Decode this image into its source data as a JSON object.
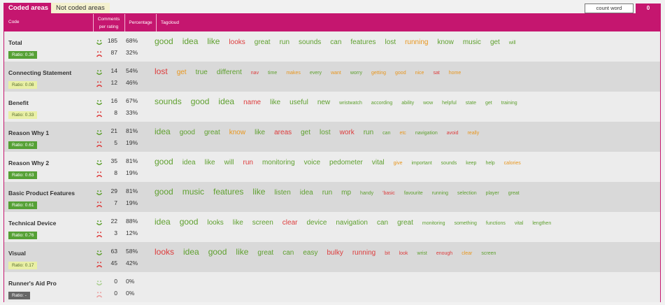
{
  "tabs": [
    {
      "label": "Coded areas",
      "active": true
    },
    {
      "label": "Not coded areas",
      "active": false
    }
  ],
  "count_control": {
    "label": "count word",
    "value": "0"
  },
  "header": {
    "code": "Code",
    "comments_line1": "Comments",
    "comments_line2": "per rating",
    "percentage": "Percentage",
    "tagcloud": "Tagcloud"
  },
  "colors": {
    "accent": "#c5166f",
    "positive_word": "#5fa02f",
    "neutral_word": "#e8961d",
    "negative_word": "#dd3c3c"
  },
  "rows": [
    {
      "code": "Total",
      "ratio": "Ratio: 0.36",
      "ratio_style": "green",
      "pos": "185",
      "pos_pct": "68%",
      "neg": "87",
      "neg_pct": "32%",
      "words": [
        [
          "good",
          "g",
          1
        ],
        [
          "idea",
          "g",
          1
        ],
        [
          "like",
          "g",
          1
        ],
        [
          "looks",
          "r",
          2
        ],
        [
          "great",
          "g",
          2
        ],
        [
          "run",
          "g",
          2
        ],
        [
          "sounds",
          "g",
          2
        ],
        [
          "can",
          "g",
          2
        ],
        [
          "features",
          "g",
          2
        ],
        [
          "lost",
          "g",
          2
        ],
        [
          "running",
          "o",
          2
        ],
        [
          "know",
          "g",
          2
        ],
        [
          "music",
          "g",
          2
        ],
        [
          "get",
          "g",
          2
        ],
        [
          "will",
          "g",
          4
        ]
      ]
    },
    {
      "code": "Connecting Statement",
      "ratio": "Ratio: 0.08",
      "ratio_style": "yellow",
      "pos": "14",
      "pos_pct": "54%",
      "neg": "12",
      "neg_pct": "46%",
      "words": [
        [
          "lost",
          "r",
          1
        ],
        [
          "get",
          "o",
          2
        ],
        [
          "true",
          "g",
          2
        ],
        [
          "different",
          "g",
          2
        ],
        [
          "nav",
          "r",
          4
        ],
        [
          "time",
          "g",
          4
        ],
        [
          "makes",
          "o",
          4
        ],
        [
          "every",
          "g",
          4
        ],
        [
          "want",
          "o",
          4
        ],
        [
          "worry",
          "g",
          4
        ],
        [
          "getting",
          "o",
          4
        ],
        [
          "good",
          "o",
          4
        ],
        [
          "nice",
          "o",
          4
        ],
        [
          "sat",
          "r",
          4
        ],
        [
          "home",
          "o",
          4
        ]
      ]
    },
    {
      "code": "Benefit",
      "ratio": "Ratio: 0.33",
      "ratio_style": "yellow",
      "pos": "16",
      "pos_pct": "67%",
      "neg": "8",
      "neg_pct": "33%",
      "words": [
        [
          "sounds",
          "g",
          1
        ],
        [
          "good",
          "g",
          1
        ],
        [
          "idea",
          "g",
          1
        ],
        [
          "name",
          "r",
          2
        ],
        [
          "like",
          "g",
          2
        ],
        [
          "useful",
          "g",
          2
        ],
        [
          "new",
          "g",
          2
        ],
        [
          "wristwatch",
          "g",
          4
        ],
        [
          "according",
          "g",
          4
        ],
        [
          "ability",
          "g",
          4
        ],
        [
          "wow",
          "g",
          4
        ],
        [
          "helpful",
          "g",
          4
        ],
        [
          "state",
          "g",
          4
        ],
        [
          "get",
          "g",
          4
        ],
        [
          "training",
          "g",
          4
        ]
      ]
    },
    {
      "code": "Reason Why 1",
      "ratio": "Ratio: 0.62",
      "ratio_style": "green",
      "pos": "21",
      "pos_pct": "81%",
      "neg": "5",
      "neg_pct": "19%",
      "words": [
        [
          "idea",
          "g",
          1
        ],
        [
          "good",
          "g",
          2
        ],
        [
          "great",
          "g",
          2
        ],
        [
          "know",
          "o",
          2
        ],
        [
          "like",
          "g",
          2
        ],
        [
          "areas",
          "r",
          2
        ],
        [
          "get",
          "g",
          2
        ],
        [
          "lost",
          "g",
          2
        ],
        [
          "work",
          "r",
          2
        ],
        [
          "run",
          "g",
          2
        ],
        [
          "can",
          "g",
          4
        ],
        [
          "etc",
          "o",
          4
        ],
        [
          "navigation",
          "g",
          4
        ],
        [
          "avoid",
          "r",
          4
        ],
        [
          "really",
          "o",
          4
        ]
      ]
    },
    {
      "code": "Reason Why 2",
      "ratio": "Ratio: 0.63",
      "ratio_style": "green",
      "pos": "35",
      "pos_pct": "81%",
      "neg": "8",
      "neg_pct": "19%",
      "words": [
        [
          "good",
          "g",
          1
        ],
        [
          "idea",
          "g",
          2
        ],
        [
          "like",
          "g",
          2
        ],
        [
          "will",
          "g",
          2
        ],
        [
          "run",
          "r",
          2
        ],
        [
          "monitoring",
          "g",
          2
        ],
        [
          "voice",
          "g",
          2
        ],
        [
          "pedometer",
          "g",
          2
        ],
        [
          "vital",
          "g",
          2
        ],
        [
          "give",
          "o",
          4
        ],
        [
          "important",
          "g",
          4
        ],
        [
          "sounds",
          "g",
          4
        ],
        [
          "keep",
          "g",
          4
        ],
        [
          "help",
          "g",
          4
        ],
        [
          "calories",
          "o",
          4
        ]
      ]
    },
    {
      "code": "Basic Product Features",
      "ratio": "Ratio: 0.61",
      "ratio_style": "green",
      "pos": "29",
      "pos_pct": "81%",
      "neg": "7",
      "neg_pct": "19%",
      "words": [
        [
          "good",
          "g",
          1
        ],
        [
          "music",
          "g",
          1
        ],
        [
          "features",
          "g",
          1
        ],
        [
          "like",
          "g",
          1
        ],
        [
          "listen",
          "g",
          2
        ],
        [
          "idea",
          "g",
          2
        ],
        [
          "run",
          "g",
          2
        ],
        [
          "mp",
          "g",
          2
        ],
        [
          "handy",
          "g",
          4
        ],
        [
          "'basic",
          "r",
          4
        ],
        [
          "favourite",
          "g",
          4
        ],
        [
          "running",
          "g",
          4
        ],
        [
          "selection",
          "g",
          4
        ],
        [
          "player",
          "g",
          4
        ],
        [
          "great",
          "g",
          4
        ]
      ]
    },
    {
      "code": "Technical Device",
      "ratio": "Ratio: 0.76",
      "ratio_style": "green",
      "pos": "22",
      "pos_pct": "88%",
      "neg": "3",
      "neg_pct": "12%",
      "words": [
        [
          "idea",
          "g",
          1
        ],
        [
          "good",
          "g",
          1
        ],
        [
          "looks",
          "g",
          2
        ],
        [
          "like",
          "g",
          2
        ],
        [
          "screen",
          "g",
          2
        ],
        [
          "clear",
          "r",
          2
        ],
        [
          "device",
          "g",
          2
        ],
        [
          "navigation",
          "g",
          2
        ],
        [
          "can",
          "g",
          2
        ],
        [
          "great",
          "g",
          2
        ],
        [
          "monitoring",
          "g",
          4
        ],
        [
          "something",
          "g",
          4
        ],
        [
          "functions",
          "g",
          4
        ],
        [
          "vital",
          "g",
          4
        ],
        [
          "lengthen",
          "g",
          4
        ]
      ]
    },
    {
      "code": "Visual",
      "ratio": "Ratio: 0.17",
      "ratio_style": "yellow",
      "pos": "63",
      "pos_pct": "58%",
      "neg": "45",
      "neg_pct": "42%",
      "words": [
        [
          "looks",
          "r",
          1
        ],
        [
          "idea",
          "g",
          1
        ],
        [
          "good",
          "g",
          1
        ],
        [
          "like",
          "g",
          1
        ],
        [
          "great",
          "g",
          2
        ],
        [
          "can",
          "g",
          2
        ],
        [
          "easy",
          "g",
          2
        ],
        [
          "bulky",
          "r",
          2
        ],
        [
          "running",
          "r",
          2
        ],
        [
          "bit",
          "r",
          4
        ],
        [
          "look",
          "r",
          4
        ],
        [
          "wrist",
          "g",
          4
        ],
        [
          "enough",
          "r",
          4
        ],
        [
          "clear",
          "o",
          4
        ],
        [
          "screen",
          "g",
          4
        ]
      ]
    },
    {
      "code": "Runner's Aid Pro",
      "ratio": "Ratio: -",
      "ratio_style": "gray",
      "pos": "0",
      "pos_pct": "0%",
      "neg": "0",
      "neg_pct": "0%",
      "words": []
    }
  ]
}
